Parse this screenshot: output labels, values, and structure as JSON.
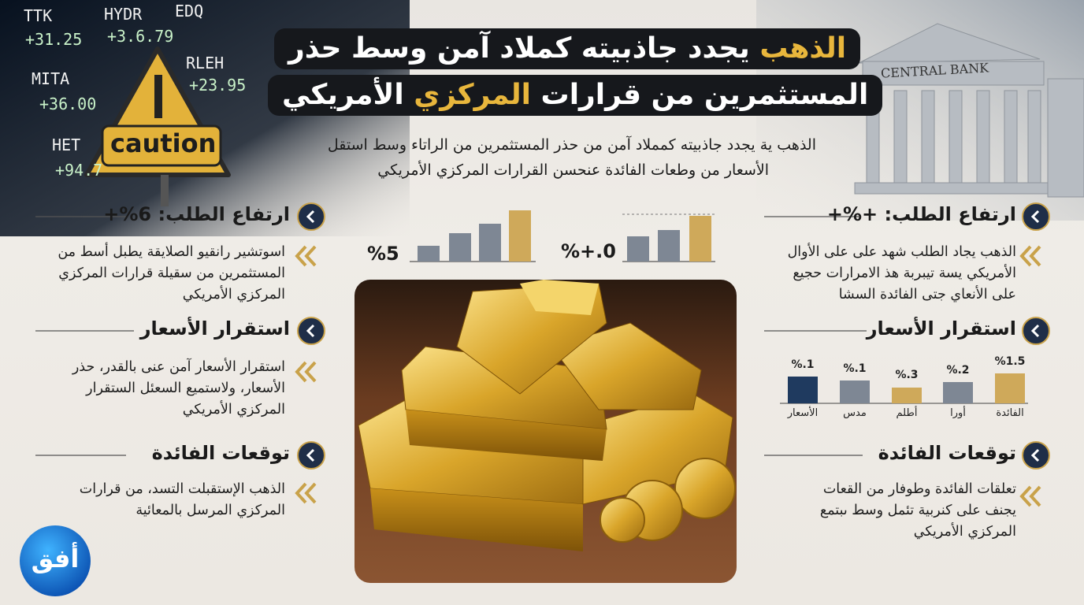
{
  "header": {
    "title_line1": {
      "highlight": "الذهب",
      "text": "يجدد جاذبيته كملاد آمن وسط حذر"
    },
    "title_line2": {
      "text_before": "المستثمرين من قرارات",
      "highlight": "المركزي",
      "text_after": "الأمريكي"
    },
    "subtitle": [
      "الذهب ية يجدد جاذبيته كمملاد آمن من حذر المستثمرين من الراتاء وسط استقل",
      "الأسعار من وطعات الفائدة عنحسن القرارات المركزي الأمريكي"
    ]
  },
  "ticker": [
    "TTK",
    "+31.25",
    "HYDR",
    "+3.6.79",
    "EDQ",
    "MITA",
    "+36.00",
    "RLEH",
    "+23.95",
    "HET",
    "+94.7"
  ],
  "decor": {
    "caution": "caution",
    "bank": "CENTRAL BANK",
    "logo": "أفق"
  },
  "mini_charts": [
    "%5",
    "%+.0"
  ],
  "left_sections": [
    {
      "heading": "ارتفاع الطلب: 6%+",
      "body": [
        "اسوتشير رانقيو الصلايقة يطبل أسط من",
        "المستثمرين من سقيلة قرارات المركزي",
        "المركزي الأمريكي"
      ]
    },
    {
      "heading": "استقرار الأسعار",
      "body": [
        "استقرار الأسعار آمن عنى بالقدر، حذر",
        "الأسعار، ولاستميع السعئل الستقرار",
        "المركزي الأمريكي"
      ]
    },
    {
      "heading": "توقعات الفائدة",
      "body": [
        "الذهب الإستقبلت التسد، من قرارات",
        "المركزي المرسل بالمعائية"
      ]
    }
  ],
  "right_sections": [
    {
      "heading": "ارتفاع الطلب: +%+",
      "body": [
        "الذهب يجاد الطلب شهد على على الأوال",
        "الأمريكي يسة تيبربة هذ الامرارات حجيع",
        "على الأنعاي جتى الفائدة السشا"
      ]
    },
    {
      "heading": "استقرار الأسعار",
      "body": []
    },
    {
      "heading": "توقعات الفائدة",
      "body": [
        "تعلقات الفائدة وطوفار من القعات",
        "يجنف على كنربية تئمل وسط ىبتمع",
        "المركزي الأمريكي"
      ]
    }
  ],
  "rate_chart": {
    "labels": [
      "%.1",
      "%.1",
      "%.3",
      "%.2",
      "%1.5"
    ],
    "categories": [
      "الأسعار",
      "مدس",
      "أطلم",
      "أورا",
      "الفائدة"
    ]
  }
}
